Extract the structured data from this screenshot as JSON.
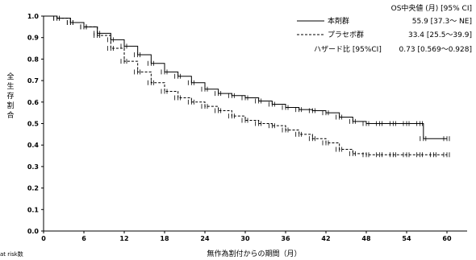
{
  "chart_data": {
    "type": "line",
    "title": "",
    "xlabel": "無作為割付からの期間（月）",
    "ylabel": "全生存割合",
    "xlim": [
      0,
      63
    ],
    "ylim": [
      0.0,
      1.0
    ],
    "xticks": [
      0,
      6,
      12,
      18,
      24,
      30,
      36,
      42,
      48,
      54,
      60
    ],
    "yticks": [
      0.0,
      0.1,
      0.2,
      0.3,
      0.4,
      0.5,
      0.6,
      0.7,
      0.8,
      0.9,
      1.0
    ],
    "grid": false,
    "legend_position": "top-right",
    "legend": {
      "header": "OS中央値 (月) [95% CI]",
      "hazard_label": "ハザード比 [95%CI]",
      "hazard_value": "0.73 [0.569～0.928]"
    },
    "series": [
      {
        "name": "本剤群",
        "median_text": "55.9 [37.3～ NE]",
        "style": "solid",
        "x": [
          0,
          2,
          4,
          6,
          8,
          10,
          12,
          14,
          16,
          18,
          20,
          22,
          24,
          26,
          28,
          30,
          32,
          34,
          36,
          38,
          40,
          42,
          44,
          46,
          48,
          50,
          52,
          54,
          56,
          56.5,
          60
        ],
        "y": [
          1.0,
          0.99,
          0.97,
          0.95,
          0.92,
          0.89,
          0.86,
          0.82,
          0.78,
          0.74,
          0.72,
          0.69,
          0.66,
          0.64,
          0.63,
          0.62,
          0.605,
          0.59,
          0.575,
          0.565,
          0.56,
          0.55,
          0.53,
          0.51,
          0.5,
          0.5,
          0.5,
          0.5,
          0.5,
          0.43,
          0.43
        ]
      },
      {
        "name": "プラセボ群",
        "median_text": "33.4 [25.5～39.9]",
        "style": "dashed",
        "x": [
          0,
          2,
          4,
          6,
          8,
          10,
          12,
          14,
          16,
          18,
          20,
          22,
          24,
          26,
          28,
          30,
          32,
          34,
          36,
          38,
          40,
          42,
          44,
          46,
          48,
          50,
          52,
          54,
          56,
          58,
          60
        ],
        "y": [
          1.0,
          0.99,
          0.97,
          0.95,
          0.91,
          0.85,
          0.79,
          0.74,
          0.69,
          0.65,
          0.62,
          0.6,
          0.58,
          0.56,
          0.535,
          0.515,
          0.5,
          0.49,
          0.47,
          0.45,
          0.43,
          0.41,
          0.38,
          0.36,
          0.355,
          0.355,
          0.355,
          0.355,
          0.355,
          0.355,
          0.355
        ]
      }
    ]
  },
  "footer": {
    "risk_label": "at risk数"
  },
  "colors": {
    "line": "#000000",
    "axis": "#000000"
  }
}
